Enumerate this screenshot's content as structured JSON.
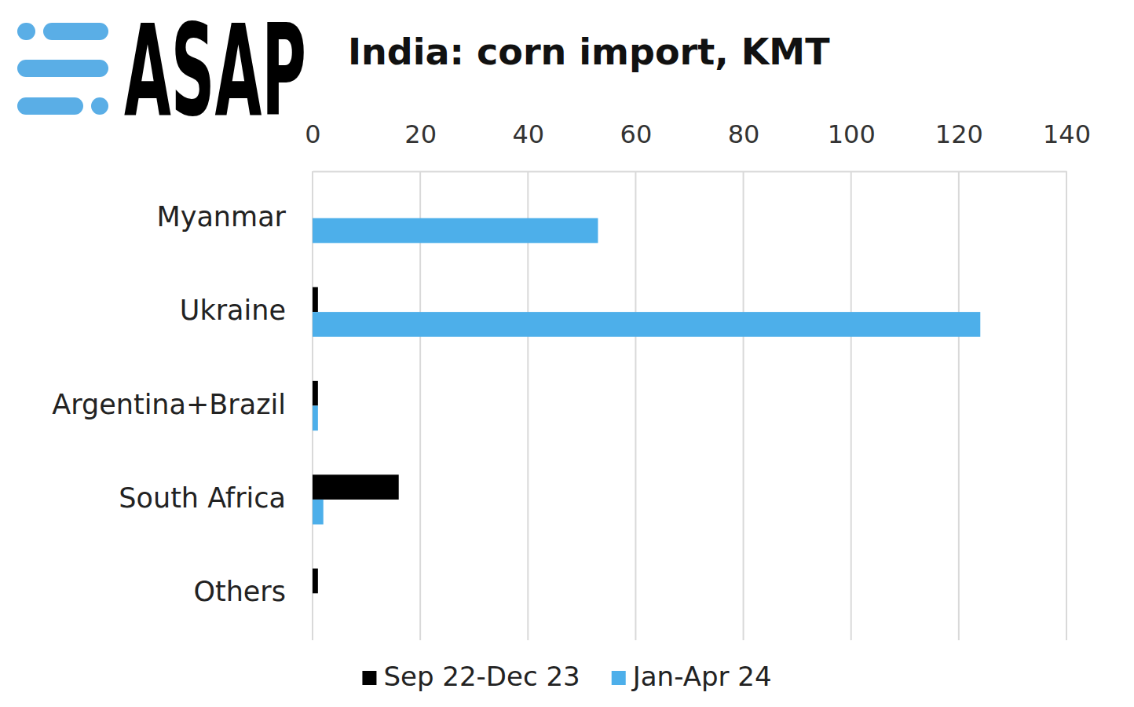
{
  "chart_data": {
    "type": "bar",
    "orientation": "horizontal",
    "title": "India: corn import, KMT",
    "annotations": [
      "ASAP"
    ],
    "categories": [
      "Myanmar",
      "Ukraine",
      "Argentina+Brazil",
      "South Africa",
      "Others"
    ],
    "series": [
      {
        "name": "Sep 22-Dec 23",
        "color": "#000000",
        "values": [
          0,
          1,
          1,
          16,
          1
        ]
      },
      {
        "name": "Jan-Apr 24",
        "color": "#4dafea",
        "values": [
          53,
          124,
          1,
          2,
          0
        ]
      }
    ],
    "xlim": [
      0,
      140
    ],
    "xticks": [
      0,
      20,
      40,
      60,
      80,
      100,
      120,
      140
    ],
    "grid": true,
    "legend": "bottom"
  }
}
